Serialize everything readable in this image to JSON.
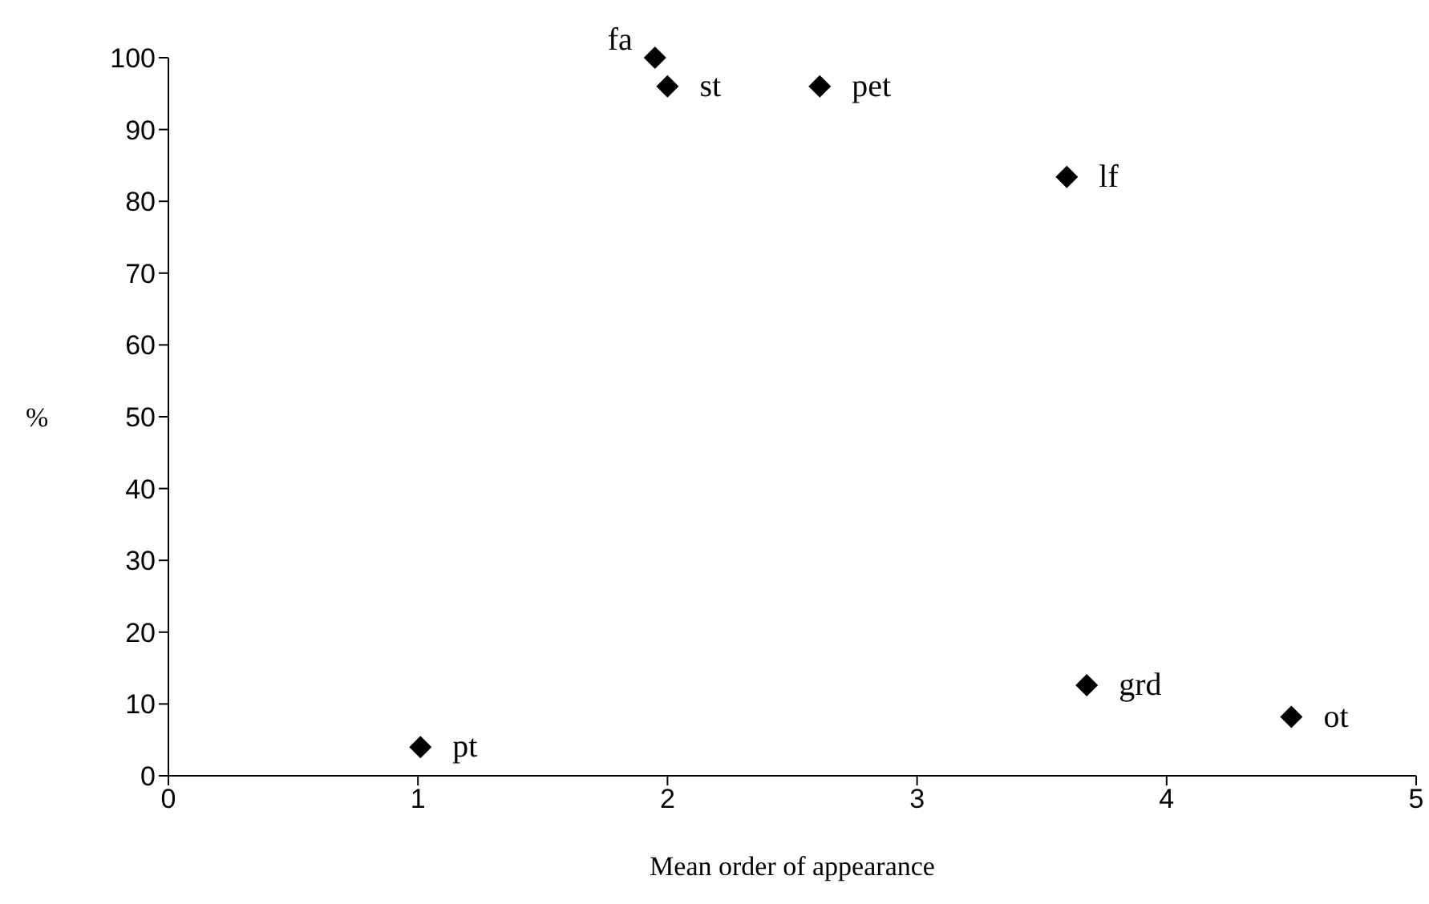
{
  "chart_data": {
    "type": "scatter",
    "xlabel": "Mean order of appearance",
    "ylabel": "%",
    "series": [
      {
        "color": "#000000",
        "x": [
          1.95,
          2.0,
          2.61,
          3.6,
          3.68,
          4.5,
          1.01
        ],
        "values": [
          100,
          96,
          96,
          83.4,
          12.6,
          8.2,
          4
        ]
      }
    ],
    "marker": "diamond",
    "grid": false,
    "legend": false,
    "xlim": [
      0,
      5
    ],
    "xticks": [
      0,
      1,
      2,
      3,
      4,
      5
    ],
    "ylim": [
      0,
      100
    ],
    "yticks": [
      0,
      10,
      20,
      30,
      40,
      50,
      60,
      70,
      80,
      90,
      100
    ],
    "annotations": [
      {
        "text": "fa",
        "x": 1.95,
        "y": 100
      },
      {
        "text": "st",
        "x": 2.0,
        "y": 96
      },
      {
        "text": "pet",
        "x": 2.61,
        "y": 96
      },
      {
        "text": "lf",
        "x": 3.6,
        "y": 83.4
      },
      {
        "text": "grd",
        "x": 3.68,
        "y": 12.6
      },
      {
        "text": "ot",
        "x": 4.5,
        "y": 8.2
      },
      {
        "text": "pt",
        "x": 1.01,
        "y": 4
      }
    ]
  }
}
